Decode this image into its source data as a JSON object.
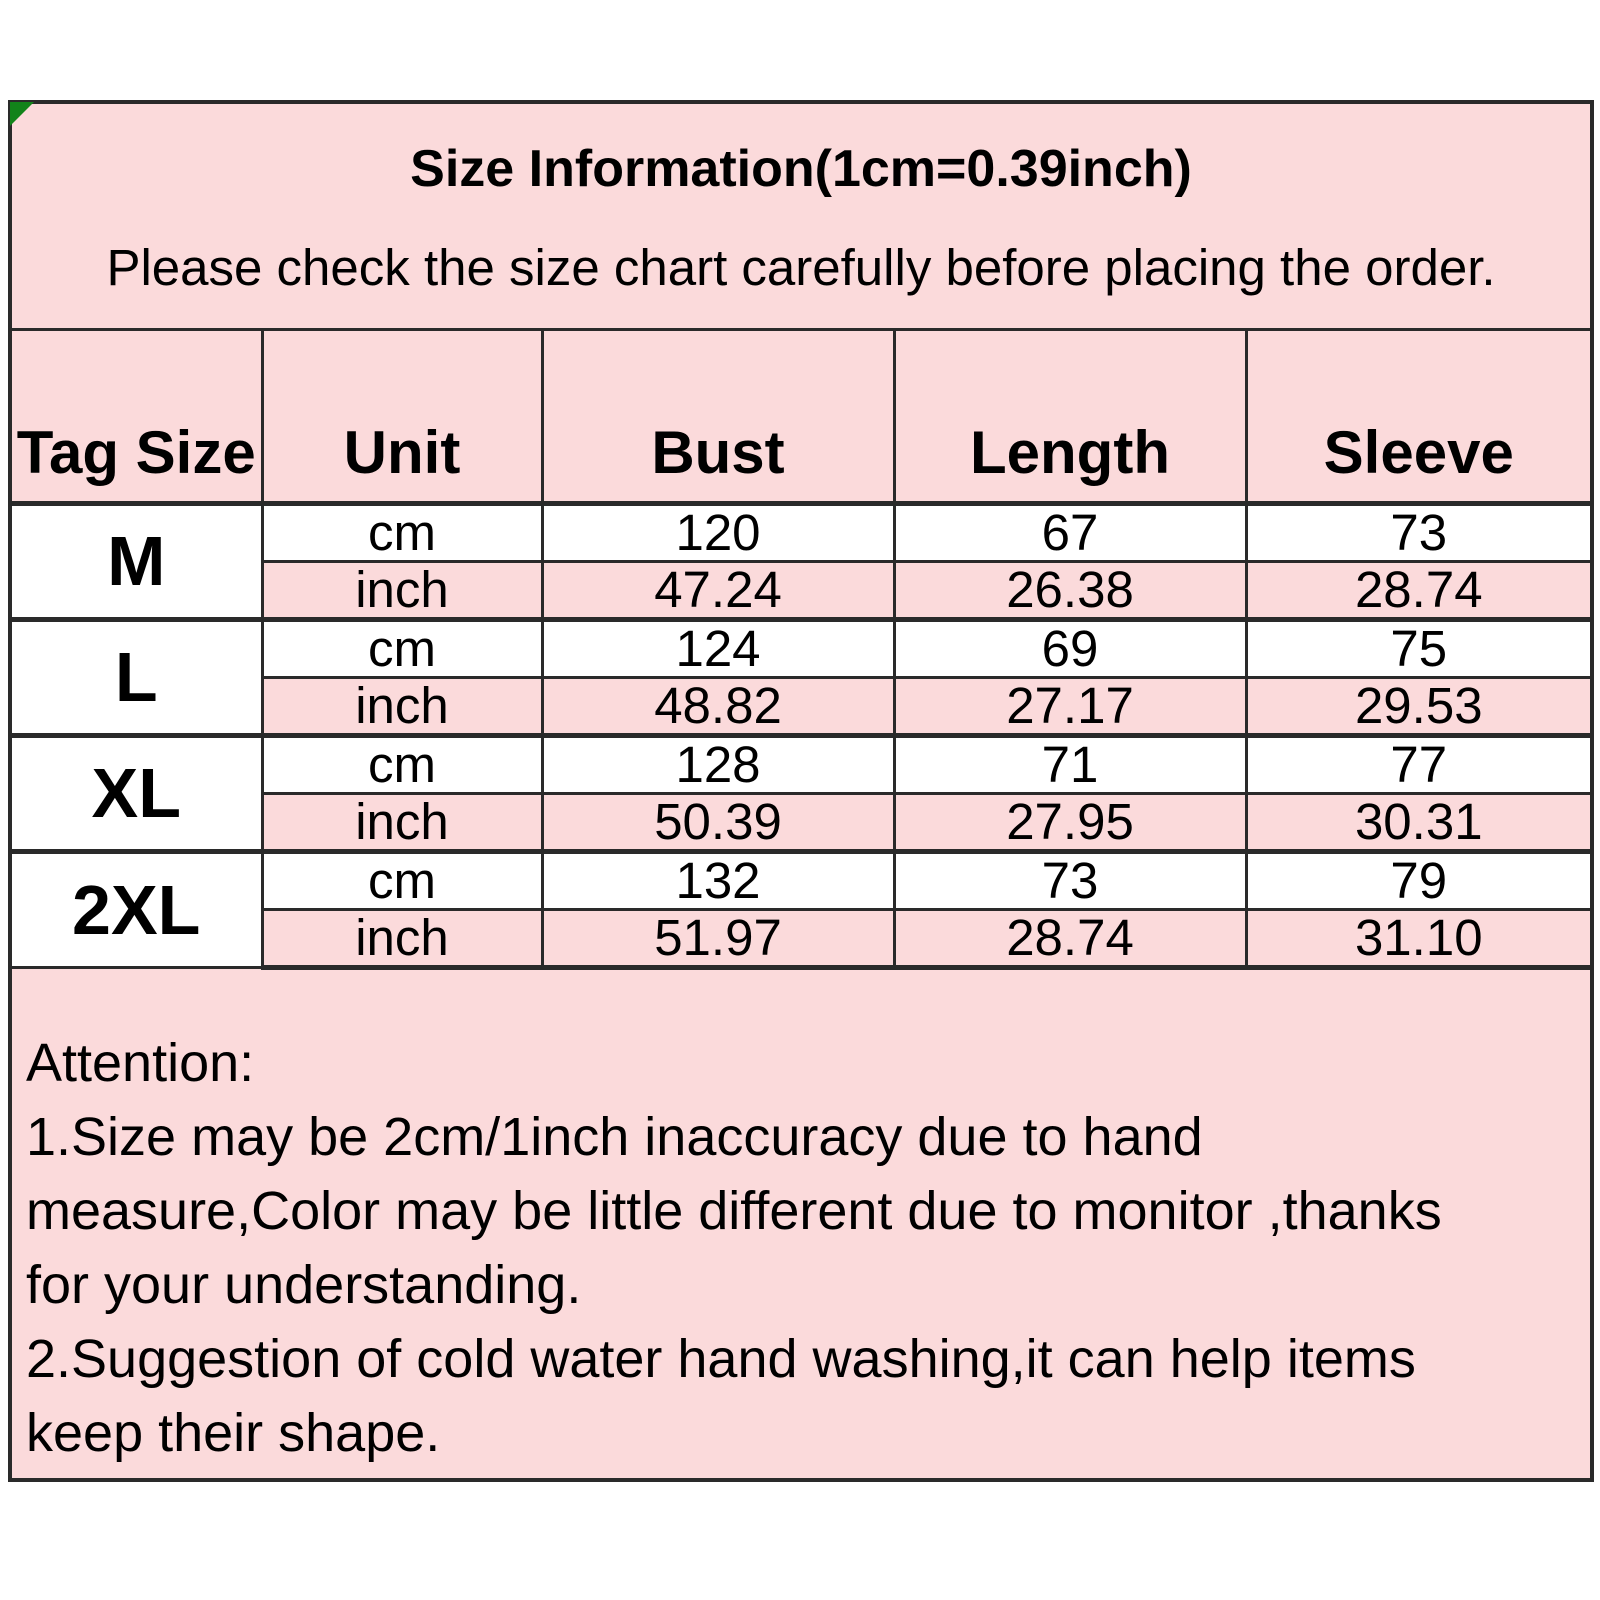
{
  "colors": {
    "panel_pink": "#fbdadb",
    "row_white": "#ffffff",
    "border_dark": "#2a2a2a",
    "text": "#000000",
    "corner_marker_green": "#12831a"
  },
  "header": {
    "title": "Size Information(1cm=0.39inch)",
    "subtitle": "Please check the size chart carefully before placing the order."
  },
  "size_table": {
    "columns": [
      "Tag Size",
      "Unit",
      "Bust",
      "Length",
      "Sleeve"
    ],
    "sizes": [
      {
        "tag": "M",
        "rows": [
          {
            "unit": "cm",
            "bust": "120",
            "length": "67",
            "sleeve": "73"
          },
          {
            "unit": "inch",
            "bust": "47.24",
            "length": "26.38",
            "sleeve": "28.74"
          }
        ]
      },
      {
        "tag": "L",
        "rows": [
          {
            "unit": "cm",
            "bust": "124",
            "length": "69",
            "sleeve": "75"
          },
          {
            "unit": "inch",
            "bust": "48.82",
            "length": "27.17",
            "sleeve": "29.53"
          }
        ]
      },
      {
        "tag": "XL",
        "rows": [
          {
            "unit": "cm",
            "bust": "128",
            "length": "71",
            "sleeve": "77"
          },
          {
            "unit": "inch",
            "bust": "50.39",
            "length": "27.95",
            "sleeve": "30.31"
          }
        ]
      },
      {
        "tag": "2XL",
        "rows": [
          {
            "unit": "cm",
            "bust": "132",
            "length": "73",
            "sleeve": "79"
          },
          {
            "unit": "inch",
            "bust": "51.97",
            "length": "28.74",
            "sleeve": "31.10"
          }
        ]
      }
    ]
  },
  "attention": {
    "lines": [
      "Attention:",
      "1.Size may be 2cm/1inch inaccuracy due to hand",
      "measure,Color may be little different due to monitor ,thanks",
      "for your understanding.",
      "2.Suggestion of cold water hand washing,it can help items",
      "keep their shape."
    ]
  },
  "chart_data": {
    "type": "table",
    "title": "Size Information(1cm=0.39inch)",
    "subtitle": "Please check the size chart carefully before placing the order.",
    "columns": [
      "Tag Size",
      "Unit",
      "Bust",
      "Length",
      "Sleeve"
    ],
    "rows": [
      [
        "M",
        "cm",
        "120",
        "67",
        "73"
      ],
      [
        "M",
        "inch",
        "47.24",
        "26.38",
        "28.74"
      ],
      [
        "L",
        "cm",
        "124",
        "69",
        "75"
      ],
      [
        "L",
        "inch",
        "48.82",
        "27.17",
        "29.53"
      ],
      [
        "XL",
        "cm",
        "128",
        "71",
        "77"
      ],
      [
        "XL",
        "inch",
        "50.39",
        "27.95",
        "30.31"
      ],
      [
        "2XL",
        "cm",
        "132",
        "73",
        "79"
      ],
      [
        "2XL",
        "inch",
        "51.97",
        "28.74",
        "31.10"
      ]
    ],
    "notes": "Attention: 1.Size may be 2cm/1inch inaccuracy due to hand measure,Color may be little different due to monitor ,thanks for your understanding. 2.Suggestion of cold water hand washing,it can help items keep their shape."
  }
}
